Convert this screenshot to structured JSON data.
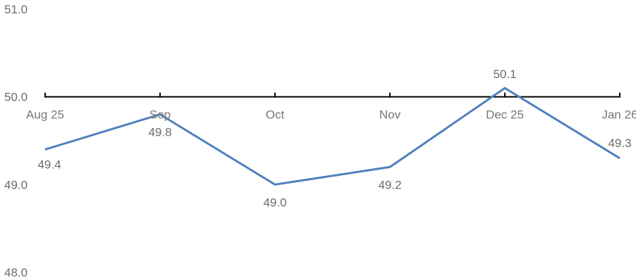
{
  "chart_data": {
    "type": "line",
    "categories": [
      "Aug 25",
      "Sep",
      "Oct",
      "Nov",
      "Dec 25",
      "Jan 26"
    ],
    "series": [
      {
        "values": [
          49.4,
          49.8,
          49.0,
          49.2,
          50.1,
          49.3
        ],
        "color": "#4f81bd",
        "data_labels": [
          "49.4",
          "49.8",
          "49.0",
          "49.2",
          "50.1",
          "49.3"
        ]
      }
    ],
    "ylim": [
      48.0,
      51.0
    ],
    "yticks": [
      "51.0",
      "50.0",
      "49.0",
      "48.0"
    ],
    "x_axis_crosses_at": 50.0,
    "axis_color": "#000000",
    "grid": false,
    "legend": "none",
    "title": "",
    "xlabel": "",
    "ylabel": ""
  }
}
